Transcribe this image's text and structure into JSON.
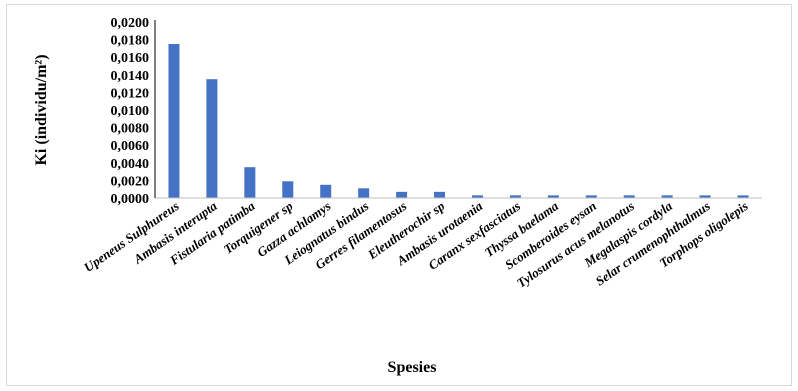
{
  "chart_data": {
    "type": "bar",
    "xlabel": "Spesies",
    "ylabel": "Ki (individu/m²)",
    "ylim": [
      0,
      0.02
    ],
    "ytick_step": 0.002,
    "ytick_labels": [
      "0,0000",
      "0,0020",
      "0,0040",
      "0,0060",
      "0,0080",
      "0,0100",
      "0,0120",
      "0,0140",
      "0,0160",
      "0,0180",
      "0,0200"
    ],
    "grid": false,
    "legend": "none",
    "bar_color": "#4472c4",
    "categories": [
      "Upeneus Sulphureus",
      "Ambasis interupta",
      "Fistularia patimba",
      "Torquigener sp",
      "Gazza achlamys",
      "Leiognatus bindus",
      "Gerres filamentosus",
      "Eleutherochir sp",
      "Ambasis urotaenia",
      "Caranx sexfasciatus",
      "Thyssa baelama",
      "Scomberoides eysan",
      "Tylosurus acus melanotus",
      "Megalaspis cordyla",
      "Selar crumenophthalmus",
      "Torphops oligolepis"
    ],
    "values": [
      0.0175,
      0.0135,
      0.0035,
      0.0019,
      0.0015,
      0.0011,
      0.0007,
      0.0007,
      0.0003,
      0.0003,
      0.0003,
      0.0003,
      0.0003,
      0.0003,
      0.0003,
      0.0003
    ]
  }
}
